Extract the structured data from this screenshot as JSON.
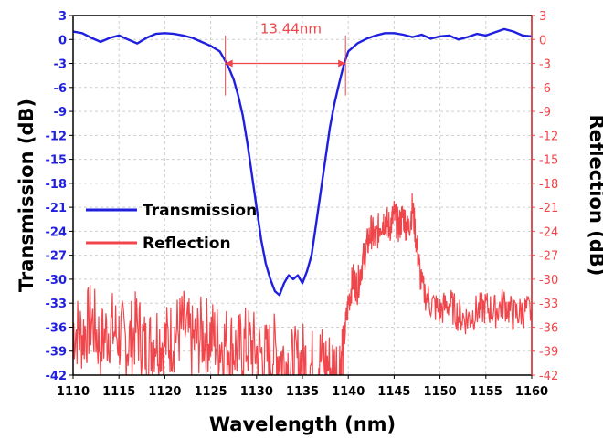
{
  "chart_data": {
    "type": "line",
    "xlabel": "Wavelength (nm)",
    "ylabel": "Transmission (dB)",
    "y2label": "Reflection (dB)",
    "xlim": [
      1110,
      1160
    ],
    "ylim": [
      -42,
      3
    ],
    "y2lim": [
      -42,
      3
    ],
    "x_ticks": [
      "1110",
      "1115",
      "1120",
      "1125",
      "1130",
      "1135",
      "1140",
      "1145",
      "1150",
      "1155",
      "1160"
    ],
    "y_ticks": [
      "3",
      "0",
      "-3",
      "-6",
      "-9",
      "-12",
      "-15",
      "-18",
      "-21",
      "-24",
      "-27",
      "-30",
      "-33",
      "-36",
      "-39",
      "-42"
    ],
    "y2_ticks": [
      "3",
      "0",
      "-3",
      "-6",
      "-9",
      "-12",
      "-15",
      "-18",
      "-21",
      "-24",
      "-27",
      "-30",
      "-33",
      "-36",
      "-39",
      "-42"
    ],
    "grid": true,
    "legend_position": "middle-left",
    "series": [
      {
        "name": "Transmission",
        "color": "#1f1fe0",
        "axis": "left",
        "x": [
          1110,
          1111,
          1112,
          1113,
          1114,
          1115,
          1116,
          1117,
          1118,
          1119,
          1120,
          1121,
          1122,
          1123,
          1124,
          1125,
          1126,
          1126.5,
          1127,
          1127.5,
          1128,
          1128.5,
          1129,
          1129.5,
          1130,
          1130.5,
          1131,
          1131.5,
          1132,
          1132.5,
          1133,
          1133.5,
          1134,
          1134.5,
          1135,
          1135.5,
          1136,
          1136.5,
          1137,
          1137.5,
          1138,
          1138.5,
          1139,
          1139.5,
          1140,
          1141,
          1142,
          1143,
          1144,
          1145,
          1146,
          1147,
          1148,
          1149,
          1150,
          1151,
          1152,
          1153,
          1154,
          1155,
          1156,
          1157,
          1158,
          1159,
          1160
        ],
        "y": [
          1.0,
          0.8,
          0.2,
          -0.3,
          0.2,
          0.5,
          0.0,
          -0.5,
          0.2,
          0.7,
          0.8,
          0.7,
          0.5,
          0.2,
          -0.3,
          -0.8,
          -1.5,
          -2.5,
          -3.6,
          -5,
          -7,
          -9.5,
          -13,
          -17,
          -21,
          -25,
          -28,
          -30,
          -31.5,
          -32,
          -30.5,
          -29.5,
          -30,
          -29.5,
          -30.5,
          -29,
          -27,
          -23,
          -19,
          -15,
          -11,
          -8,
          -5.5,
          -3.2,
          -1.5,
          -0.5,
          0.1,
          0.5,
          0.8,
          0.8,
          0.6,
          0.3,
          0.6,
          0.1,
          0.4,
          0.5,
          0.0,
          0.3,
          0.7,
          0.5,
          0.9,
          1.3,
          1.0,
          0.5,
          0.4
        ]
      },
      {
        "name": "Reflection",
        "color": "#f0464b",
        "axis": "right",
        "x": [
          1110,
          1111,
          1112,
          1113,
          1114,
          1115,
          1116,
          1117,
          1118,
          1119,
          1120,
          1121,
          1122,
          1123,
          1124,
          1125,
          1126,
          1127,
          1128,
          1129,
          1130,
          1131,
          1132,
          1133,
          1134,
          1135,
          1136,
          1137,
          1138,
          1139,
          1139.5,
          1140,
          1140.5,
          1141,
          1141.5,
          1142,
          1142.5,
          1143,
          1143.5,
          1144,
          1144.5,
          1145,
          1145.5,
          1146,
          1146.5,
          1147,
          1147.5,
          1148,
          1149,
          1150,
          1151,
          1152,
          1153,
          1154,
          1155,
          1156,
          1157,
          1158,
          1159,
          1160
        ],
        "y": [
          -36,
          -37,
          -35,
          -38,
          -36,
          -37,
          -38,
          -36,
          -39,
          -37,
          -38,
          -37,
          -36,
          -38,
          -37,
          -37,
          -38,
          -38,
          -39,
          -38,
          -39,
          -40,
          -39,
          -40,
          -41,
          -40,
          -41,
          -40,
          -41,
          -41,
          -38,
          -33,
          -30,
          -31,
          -28,
          -26,
          -24,
          -25,
          -23,
          -22.5,
          -23.5,
          -22,
          -23.5,
          -22,
          -24,
          -21,
          -26,
          -31,
          -33,
          -34,
          -33,
          -34.5,
          -35,
          -34,
          -33.5,
          -34,
          -33,
          -34.5,
          -34,
          -34
        ]
      }
    ],
    "annotations": [
      {
        "text": "13.44nm",
        "color": "#f0464b",
        "x_start": 1126.6,
        "x_end": 1139.7,
        "y": -3
      }
    ]
  }
}
